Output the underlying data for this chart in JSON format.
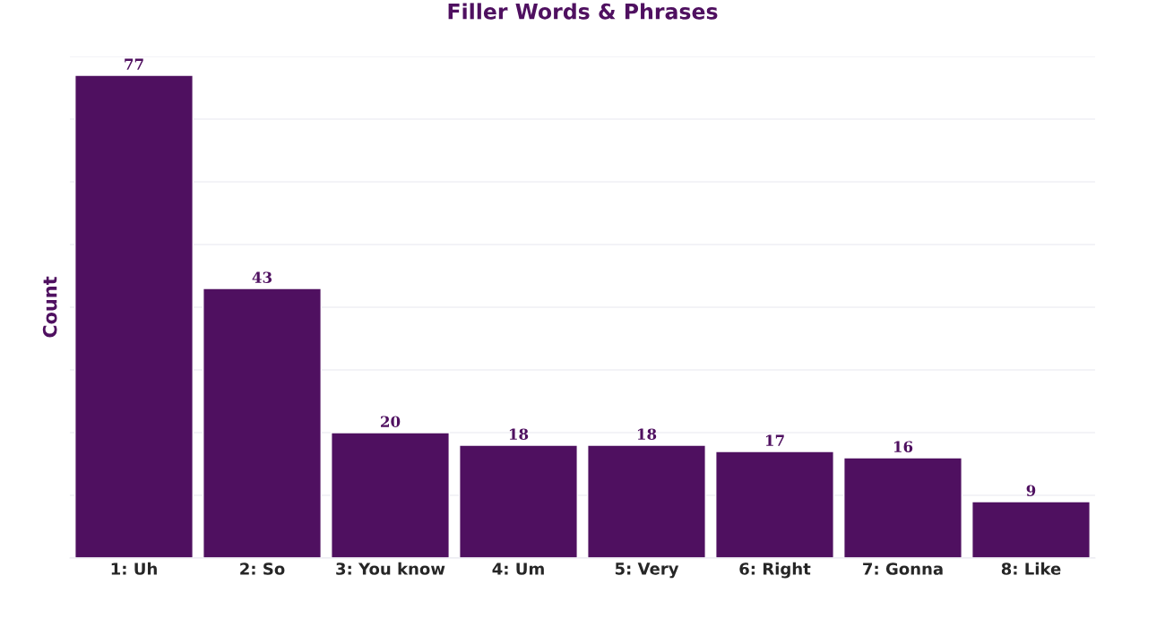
{
  "chart_data": {
    "type": "bar",
    "title": "Filler Words & Phrases",
    "ylabel": "Count",
    "categories": [
      "1: Uh",
      "2: So",
      "3: You know",
      "4: Um",
      "5: Very",
      "6: Right",
      "7: Gonna",
      "8: Like"
    ],
    "values": [
      77,
      43,
      20,
      18,
      18,
      17,
      16,
      9
    ],
    "color": "#4f1060",
    "ylim": [
      0,
      80
    ],
    "yticks": [
      {
        "value": 0,
        "label": null
      },
      {
        "value": 10,
        "label": null
      },
      {
        "value": 20,
        "label": null
      },
      {
        "value": 30,
        "label": null
      },
      {
        "value": 40,
        "label": null
      },
      {
        "value": 50,
        "label": null
      },
      {
        "value": 60,
        "label": null
      },
      {
        "value": 70,
        "label": null
      },
      {
        "value": 80,
        "label": null
      }
    ],
    "tick_labels": "x",
    "grid": "y",
    "data_labels": true,
    "legend": false
  }
}
